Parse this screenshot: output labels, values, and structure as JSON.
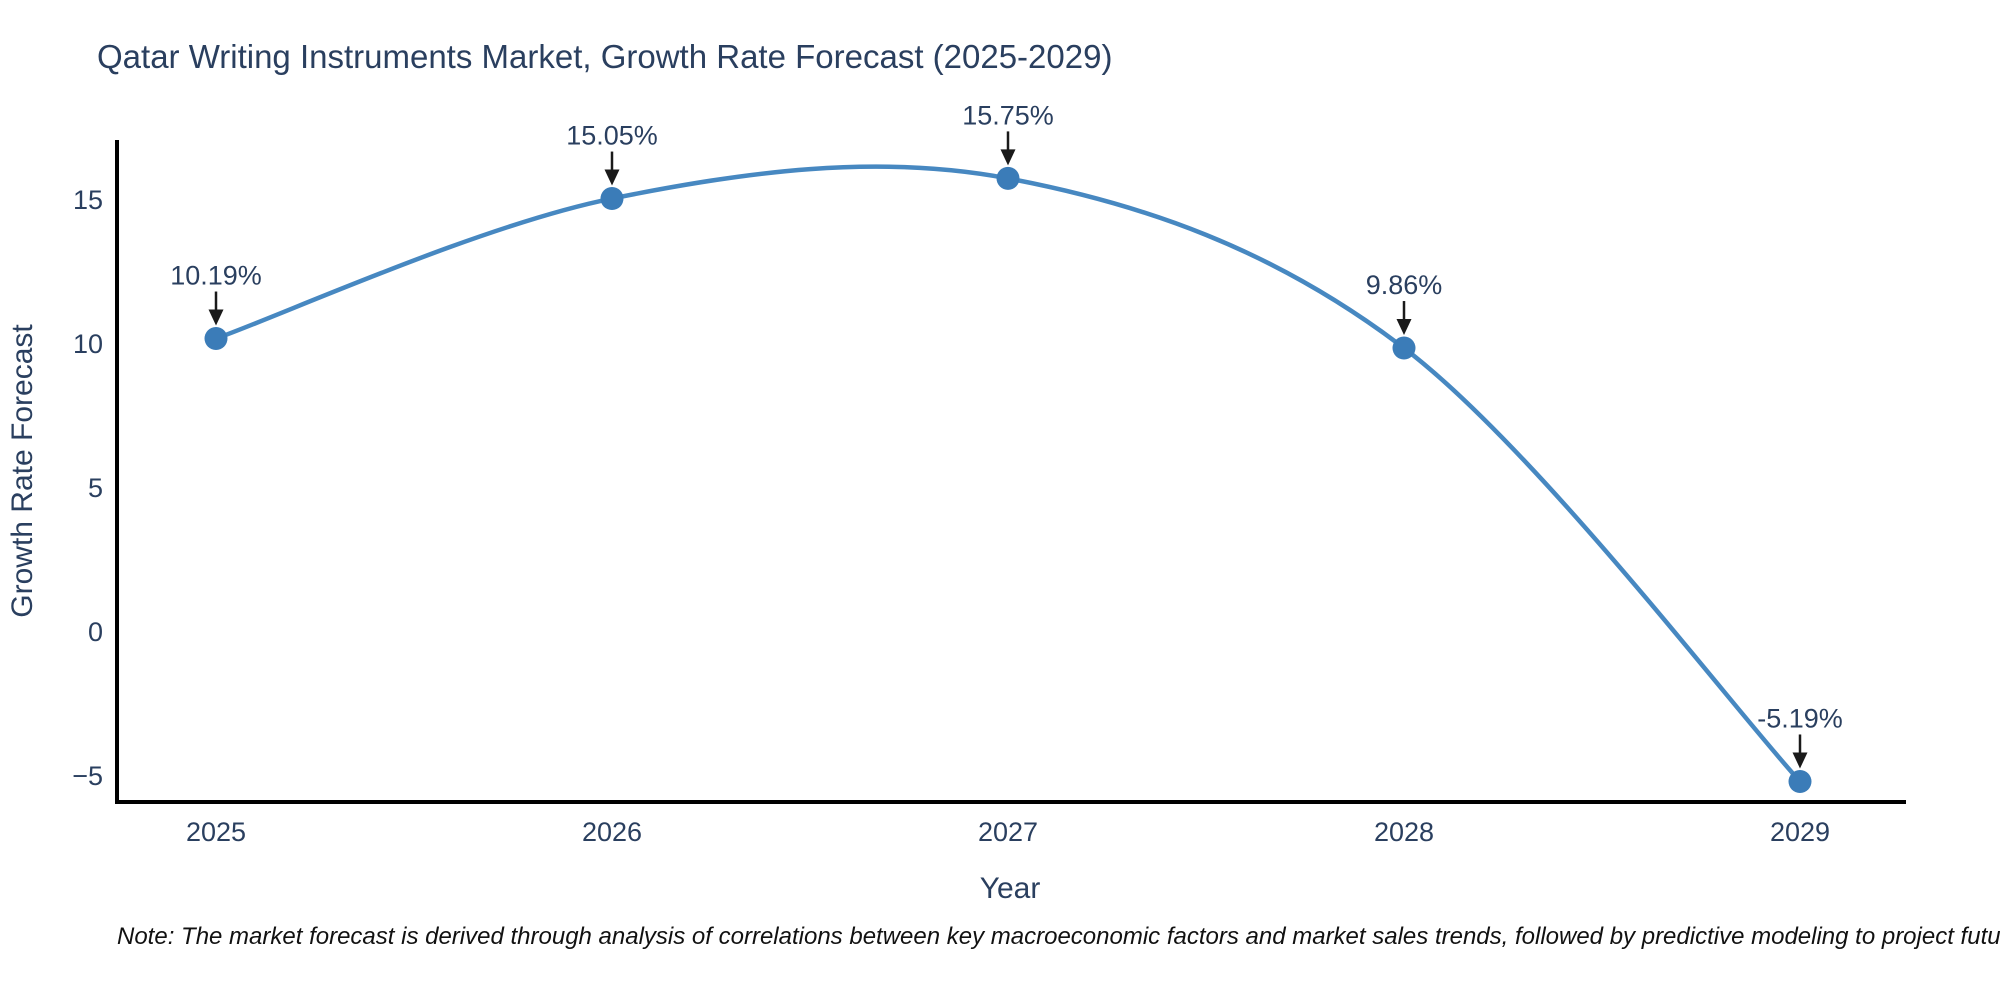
{
  "title": "Qatar Writing Instruments Market, Growth Rate Forecast (2025-2029)",
  "note": "Note: The market forecast is derived through analysis of correlations between key macroeconomic factors and market sales trends, followed by predictive modeling to project future sales",
  "chart_data": {
    "type": "line",
    "title": "Qatar Writing Instruments Market, Growth Rate Forecast (2025-2029)",
    "x": [
      2025,
      2026,
      2027,
      2028,
      2029
    ],
    "x_tick_labels": [
      "2025",
      "2026",
      "2027",
      "2028",
      "2029"
    ],
    "y": [
      10.19,
      15.05,
      15.75,
      9.86,
      -5.19
    ],
    "point_labels": [
      "10.19%",
      "15.05%",
      "15.75%",
      "9.86%",
      "-5.19%"
    ],
    "xlabel": "Year",
    "ylabel": "Growth Rate Forecast",
    "y_ticks": [
      15,
      10,
      5,
      0,
      -5
    ],
    "y_tick_labels": [
      "15",
      "10",
      "5",
      "0",
      "−5"
    ],
    "ylim": [
      -6.2,
      16.9
    ],
    "xlim": [
      2024.75,
      2029.27
    ],
    "grid": false,
    "legend": false,
    "line_style": "spline",
    "annotation_arrows": true,
    "colors": {
      "line": "#4788c1",
      "marker": "#3b7cb8",
      "text": "#2a3f5f",
      "axis": "#000000",
      "note": "#111111",
      "background": "#ffffff"
    }
  }
}
